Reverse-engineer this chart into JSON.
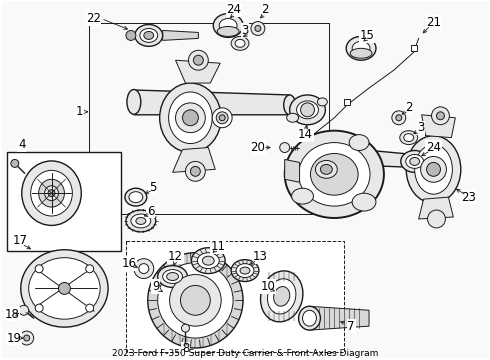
{
  "title": "2023 Ford F-350 Super Duty Carrier & Front Axles Diagram",
  "bg_color": "#ffffff",
  "line_color": "#1a1a1a",
  "fig_width": 4.9,
  "fig_height": 3.6,
  "dpi": 100,
  "gray_light": "#d8d8d8",
  "gray_mid": "#b8b8b8",
  "gray_dark": "#909090",
  "gray_fill": "#e8e8e8"
}
